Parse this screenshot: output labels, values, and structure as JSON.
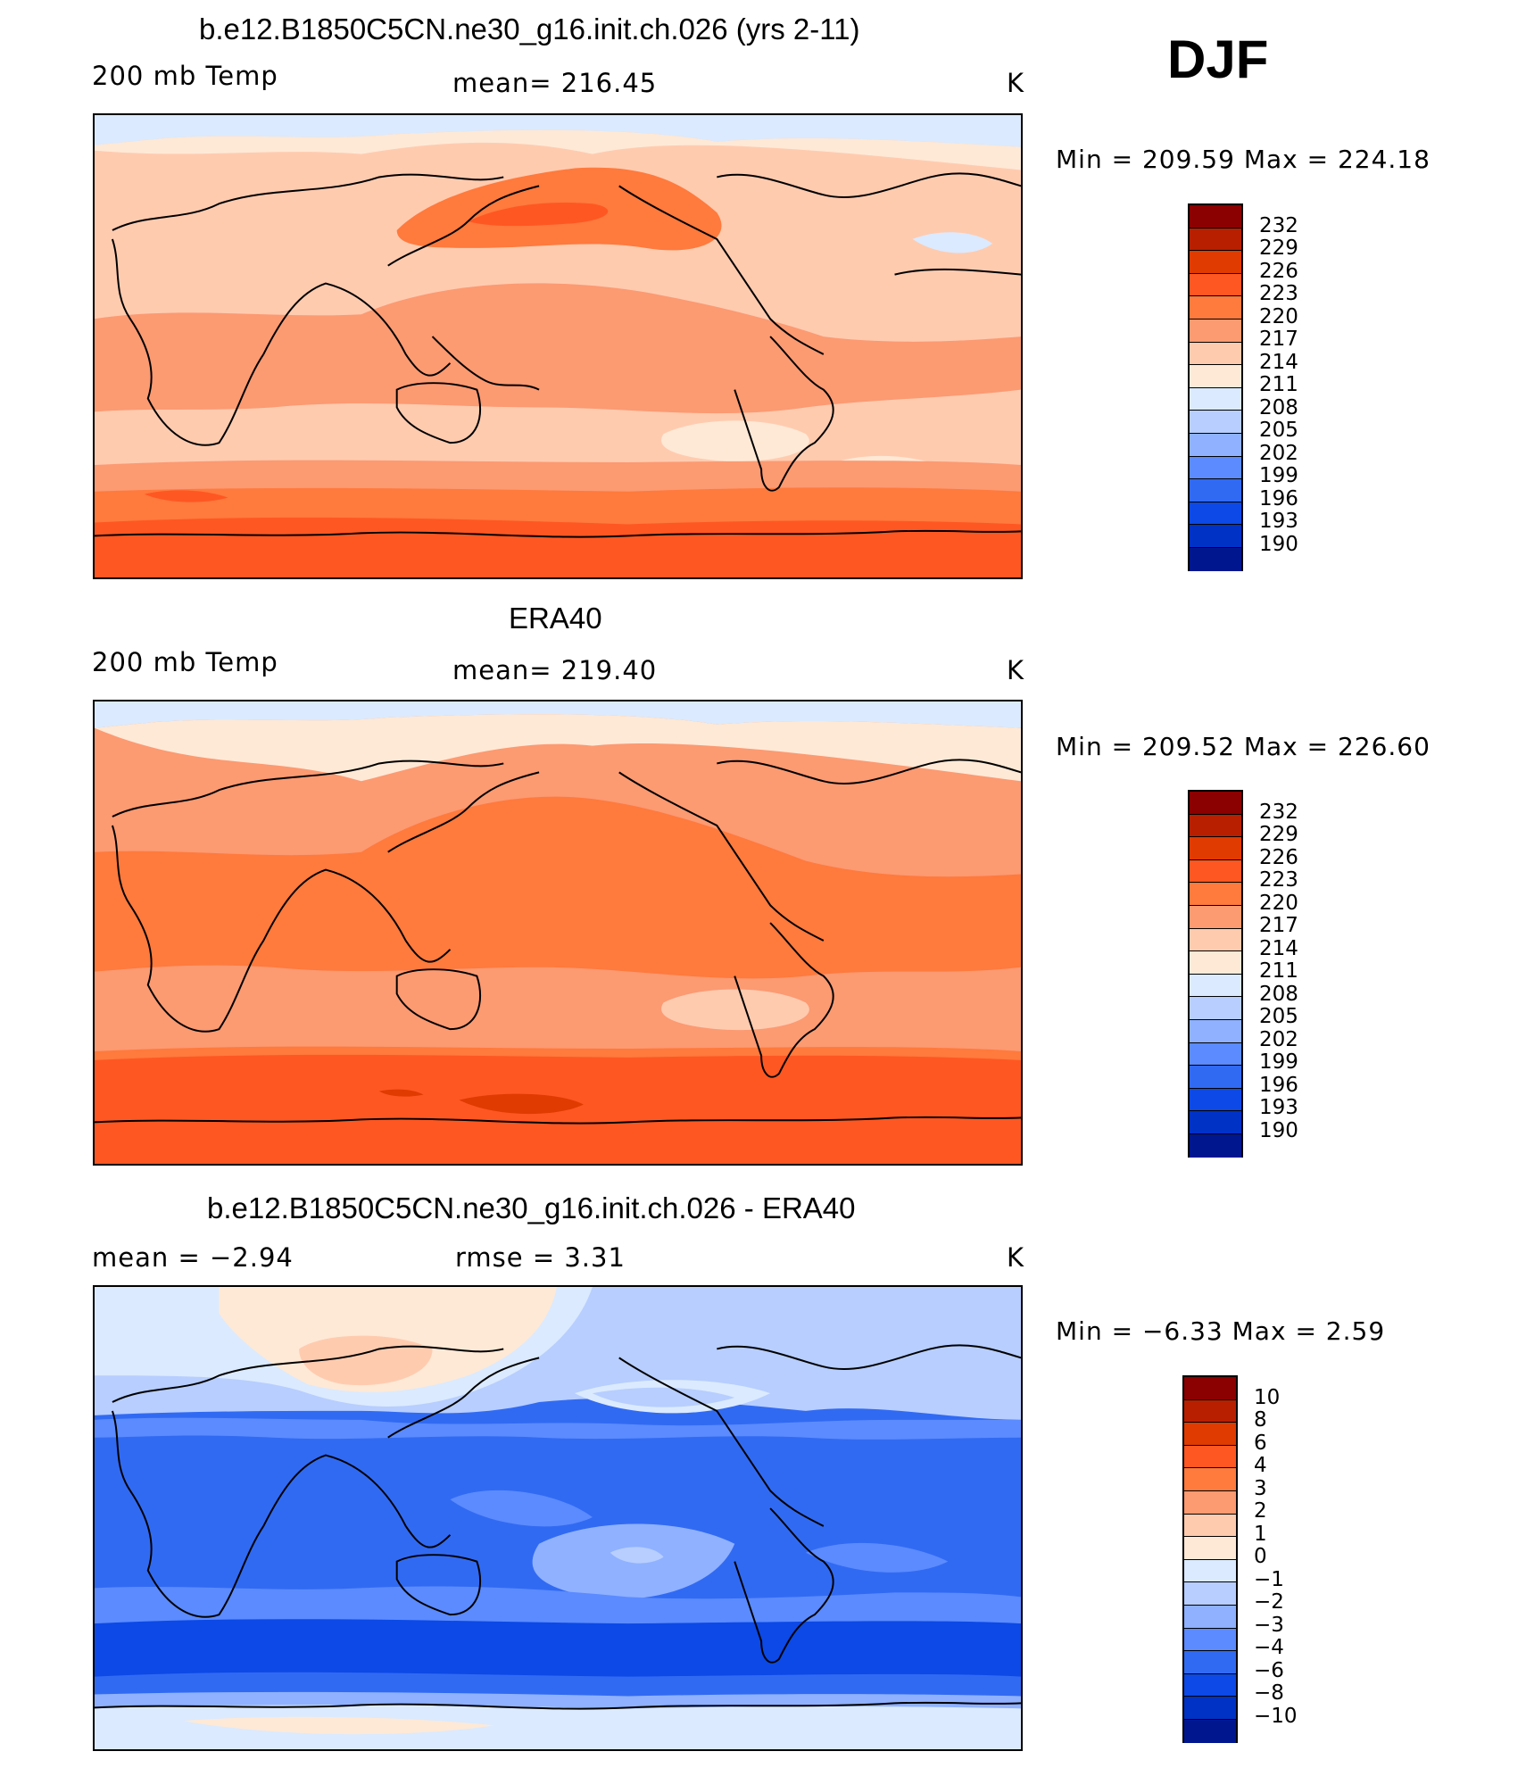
{
  "season": "DJF",
  "panels": [
    {
      "title": "b.e12.B1850C5CN.ne30_g16.init.ch.026 (yrs 2-11)",
      "left_label": "200 mb Temp",
      "center_label": "mean=  216.45",
      "units": "K",
      "minmax": "Min  =  209.59  Max  =  224.18",
      "colorbar_levels": [
        "232",
        "229",
        "226",
        "223",
        "220",
        "217",
        "214",
        "211",
        "208",
        "205",
        "202",
        "199",
        "196",
        "193",
        "190"
      ]
    },
    {
      "title": "ERA40",
      "left_label": "200 mb Temp",
      "center_label": "mean=  219.40",
      "units": "K",
      "minmax": "Min  =  209.52  Max  =  226.60",
      "colorbar_levels": [
        "232",
        "229",
        "226",
        "223",
        "220",
        "217",
        "214",
        "211",
        "208",
        "205",
        "202",
        "199",
        "196",
        "193",
        "190"
      ]
    },
    {
      "title": "b.e12.B1850C5CN.ne30_g16.init.ch.026 - ERA40",
      "left_label": "mean  =    −2.94",
      "center_label": "rmse  =     3.31",
      "units": "K",
      "minmax": "Min  =    −6.33  Max  =     2.59",
      "colorbar_levels": [
        "10",
        "8",
        "6",
        "4",
        "3",
        "2",
        "1",
        "0",
        "−1",
        "−2",
        "−3",
        "−4",
        "−6",
        "−8",
        "−10"
      ]
    }
  ],
  "colors": {
    "colorbar": [
      "#8b0000",
      "#b81f00",
      "#e03b00",
      "#ff5722",
      "#ff7a3d",
      "#fc9a72",
      "#ffcbaf",
      "#fee9d6",
      "#dbeafe",
      "#b7ceff",
      "#8fb1ff",
      "#5b8bff",
      "#316af2",
      "#0c49e6",
      "#0032c6",
      "#00168f"
    ],
    "land_outline": "#000000"
  }
}
